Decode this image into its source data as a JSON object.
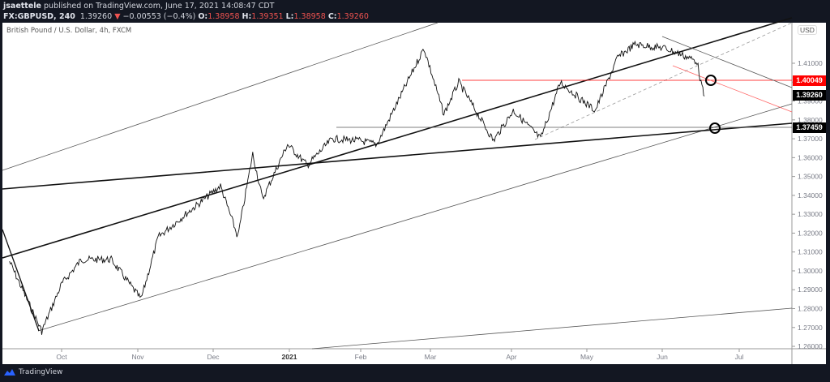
{
  "header": {
    "author": "jsaettele",
    "published": "published on TradingView.com, June 17, 2021 14:08:47 CDT",
    "symbol": "FX:GBPUSD, 240",
    "last": "1.39260",
    "direction_icon": "triangle-down-icon",
    "change": "−0.00553 (−0.4%)",
    "ohlc": {
      "o_label": "O:",
      "o": "1.38958",
      "h_label": "H:",
      "h": "1.39351",
      "l_label": "L:",
      "l": "1.38958",
      "c_label": "C:",
      "c": "1.39260"
    }
  },
  "chart": {
    "title": "British Pound / U.S. Dollar, 4h, FXCM",
    "currency": "USD",
    "price_tags": [
      {
        "value": "1.40049",
        "color": "#ff0000"
      },
      {
        "value": "1.39260",
        "color": "#000000"
      },
      {
        "value": "1.37459",
        "color": "#000000"
      }
    ]
  },
  "footer": {
    "brand": "TradingView",
    "brand_icon": "tradingview-logo-icon"
  },
  "chart_data": {
    "type": "line",
    "title": "British Pound / U.S. Dollar, 4h, FXCM",
    "xlabel": "",
    "ylabel": "USD",
    "x_ticks": [
      "Oct",
      "Nov",
      "Dec",
      "2021",
      "Feb",
      "Mar",
      "Apr",
      "May",
      "Jun",
      "Jul"
    ],
    "y_ticks": [
      "1.41000",
      "1.40000",
      "1.39000",
      "1.38000",
      "1.37000",
      "1.36000",
      "1.35000",
      "1.34000",
      "1.33000",
      "1.32000",
      "1.31000",
      "1.30000",
      "1.29000",
      "1.28000",
      "1.27000",
      "1.26000"
    ],
    "ylim": [
      1.26,
      1.42
    ],
    "grid": false,
    "series": [
      {
        "name": "GBPUSD 4h close (approx)",
        "x": [
          "2020-09-10",
          "2020-09-17",
          "2020-09-23",
          "2020-10-01",
          "2020-10-09",
          "2020-10-21",
          "2020-11-02",
          "2020-11-09",
          "2020-11-20",
          "2020-12-04",
          "2020-12-11",
          "2020-12-17",
          "2020-12-21",
          "2020-12-31",
          "2021-01-08",
          "2021-01-18",
          "2021-01-29",
          "2021-02-05",
          "2021-02-24",
          "2021-03-04",
          "2021-03-10",
          "2021-03-24",
          "2021-04-01",
          "2021-04-12",
          "2021-04-20",
          "2021-04-28",
          "2021-05-04",
          "2021-05-13",
          "2021-05-20",
          "2021-06-01",
          "2021-06-07",
          "2021-06-14",
          "2021-06-16",
          "2021-06-17"
        ],
        "values": [
          1.305,
          1.285,
          1.268,
          1.293,
          1.306,
          1.306,
          1.285,
          1.318,
          1.33,
          1.345,
          1.318,
          1.362,
          1.338,
          1.367,
          1.356,
          1.37,
          1.369,
          1.367,
          1.418,
          1.383,
          1.4,
          1.369,
          1.385,
          1.37,
          1.4,
          1.391,
          1.385,
          1.413,
          1.42,
          1.418,
          1.415,
          1.411,
          1.397,
          1.3926
        ]
      }
    ],
    "annotations": [
      {
        "type": "horizontal_level",
        "value": 1.40049,
        "color": "#ff0000"
      },
      {
        "type": "horizontal_level",
        "value": 1.37459,
        "color": "#000000"
      },
      {
        "type": "circle_marker",
        "near": 1.40049
      },
      {
        "type": "circle_marker",
        "near": 1.37459
      },
      {
        "type": "trendlines",
        "count": 8
      }
    ]
  }
}
